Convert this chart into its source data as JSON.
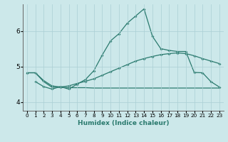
{
  "xlabel": "Humidex (Indice chaleur)",
  "xlim": [
    -0.5,
    23.5
  ],
  "ylim": [
    3.75,
    6.75
  ],
  "yticks": [
    4,
    5,
    6
  ],
  "xticks": [
    0,
    1,
    2,
    3,
    4,
    5,
    6,
    7,
    8,
    9,
    10,
    11,
    12,
    13,
    14,
    15,
    16,
    17,
    18,
    19,
    20,
    21,
    22,
    23
  ],
  "bg_color": "#cce8ea",
  "grid_color": "#aacfd4",
  "line_color": "#2a7a6e",
  "line1_x": [
    0,
    1,
    2,
    3,
    4,
    5,
    6,
    7,
    8,
    9,
    10,
    11,
    12,
    13,
    14,
    15,
    16,
    17,
    18,
    19,
    20,
    21,
    22,
    23
  ],
  "line1_y": [
    4.82,
    4.82,
    4.6,
    4.45,
    4.42,
    4.45,
    4.52,
    4.58,
    4.65,
    4.75,
    4.85,
    4.95,
    5.05,
    5.15,
    5.22,
    5.28,
    5.33,
    5.36,
    5.38,
    5.36,
    5.3,
    5.22,
    5.15,
    5.08
  ],
  "line2_x": [
    0,
    1,
    2,
    3,
    4,
    5,
    6,
    7,
    8,
    9,
    10,
    11,
    12,
    13,
    14,
    15,
    16,
    17,
    18,
    19,
    20,
    21,
    22,
    23
  ],
  "line2_y": [
    4.82,
    4.82,
    4.57,
    4.41,
    4.41,
    4.4,
    4.4,
    4.4,
    4.39,
    4.39,
    4.39,
    4.39,
    4.39,
    4.39,
    4.39,
    4.39,
    4.39,
    4.39,
    4.39,
    4.39,
    4.39,
    4.39,
    4.39,
    4.39
  ],
  "line3_x": [
    1,
    2,
    3,
    4,
    5,
    6,
    7,
    8,
    9,
    10,
    11,
    12,
    13,
    14,
    15,
    16,
    17,
    18,
    19,
    20,
    21,
    22,
    23
  ],
  "line3_y": [
    4.57,
    4.43,
    4.36,
    4.43,
    4.36,
    4.5,
    4.63,
    4.88,
    5.32,
    5.72,
    5.92,
    6.22,
    6.42,
    6.62,
    5.85,
    5.5,
    5.45,
    5.42,
    5.42,
    4.83,
    4.82,
    4.57,
    4.42
  ],
  "marker": "D",
  "markersize": 2.0,
  "linewidth": 0.9,
  "xlabel_fontsize": 6.5,
  "tick_fontsize_x": 5.2,
  "tick_fontsize_y": 6.5
}
